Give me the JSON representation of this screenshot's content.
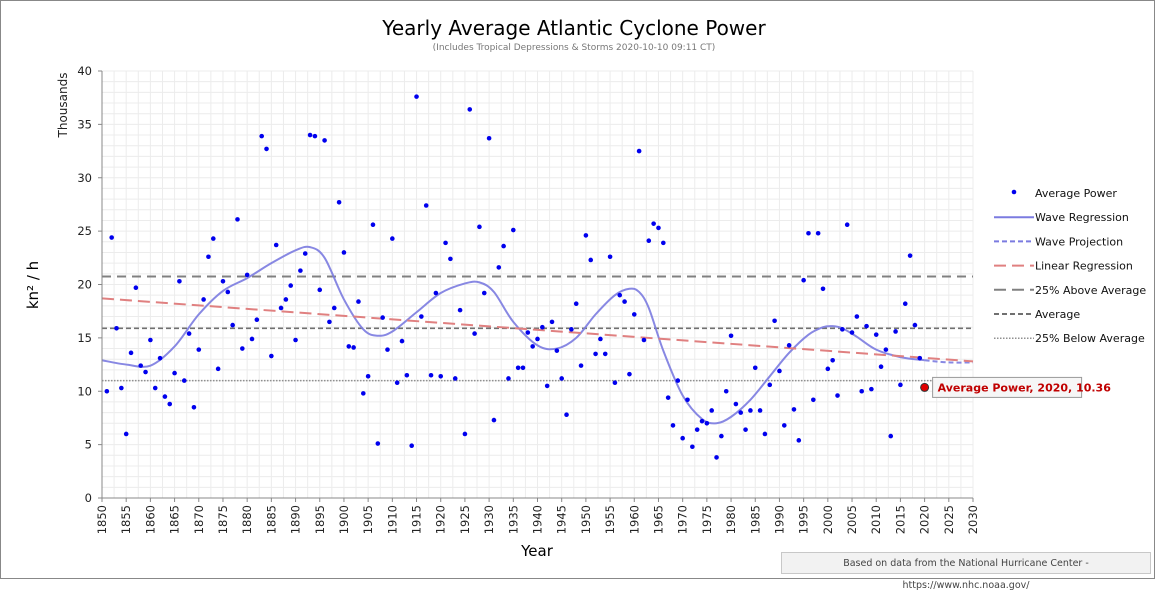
{
  "chart_data": {
    "type": "scatter",
    "title": "Yearly Average Atlantic Cyclone Power",
    "subtitle": "(Includes Tropical Depressions & Storms 2020-10-10 09:11 CT)",
    "xlabel": "Year",
    "ylabel": "kn² / h",
    "y_units_label": "Thousands",
    "xlim": [
      1850,
      2030
    ],
    "ylim": [
      0,
      40
    ],
    "x_ticks": [
      1850,
      1855,
      1860,
      1865,
      1870,
      1875,
      1880,
      1885,
      1890,
      1895,
      1900,
      1905,
      1910,
      1915,
      1920,
      1925,
      1930,
      1935,
      1940,
      1945,
      1950,
      1955,
      1960,
      1965,
      1970,
      1975,
      1980,
      1985,
      1990,
      1995,
      2000,
      2005,
      2010,
      2015,
      2020,
      2025,
      2030
    ],
    "y_ticks": [
      0,
      5,
      10,
      15,
      20,
      25,
      30,
      35,
      40
    ],
    "grid": true,
    "legend_position": "right",
    "legend": [
      {
        "name": "Average Power",
        "style": "dot",
        "color": "#0000ee"
      },
      {
        "name": "Wave Regression",
        "style": "solid",
        "color": "#7b7be0"
      },
      {
        "name": "Wave Projection",
        "style": "dash",
        "color": "#7b7be0"
      },
      {
        "name": "Linear Regression",
        "style": "longdash",
        "color": "#e08080"
      },
      {
        "name": "25% Above Average",
        "style": "longdash",
        "color": "#808080"
      },
      {
        "name": "Average",
        "style": "dash",
        "color": "#707070"
      },
      {
        "name": "25% Below Average",
        "style": "dot",
        "color": "#909090"
      }
    ],
    "series": [
      {
        "name": "Average Power",
        "x": [
          1851,
          1852,
          1853,
          1854,
          1855,
          1856,
          1857,
          1858,
          1859,
          1860,
          1861,
          1862,
          1863,
          1864,
          1865,
          1866,
          1867,
          1868,
          1869,
          1870,
          1871,
          1872,
          1873,
          1874,
          1875,
          1876,
          1877,
          1878,
          1879,
          1880,
          1881,
          1882,
          1883,
          1884,
          1885,
          1886,
          1887,
          1888,
          1889,
          1890,
          1891,
          1892,
          1893,
          1894,
          1895,
          1896,
          1897,
          1898,
          1899,
          1900,
          1901,
          1902,
          1903,
          1904,
          1905,
          1906,
          1907,
          1908,
          1909,
          1910,
          1911,
          1912,
          1913,
          1914,
          1915,
          1916,
          1917,
          1918,
          1919,
          1920,
          1921,
          1922,
          1923,
          1924,
          1925,
          1926,
          1927,
          1928,
          1929,
          1930,
          1931,
          1932,
          1933,
          1934,
          1935,
          1936,
          1937,
          1938,
          1939,
          1940,
          1941,
          1942,
          1943,
          1944,
          1945,
          1946,
          1947,
          1948,
          1949,
          1950,
          1951,
          1952,
          1953,
          1954,
          1955,
          1956,
          1957,
          1958,
          1959,
          1960,
          1961,
          1962,
          1963,
          1964,
          1965,
          1966,
          1967,
          1968,
          1969,
          1970,
          1971,
          1972,
          1973,
          1974,
          1975,
          1976,
          1977,
          1978,
          1979,
          1980,
          1981,
          1982,
          1983,
          1984,
          1985,
          1986,
          1987,
          1988,
          1989,
          1990,
          1991,
          1992,
          1993,
          1994,
          1995,
          1996,
          1997,
          1998,
          1999,
          2000,
          2001,
          2002,
          2003,
          2004,
          2005,
          2006,
          2007,
          2008,
          2009,
          2010,
          2011,
          2012,
          2013,
          2014,
          2015,
          2016,
          2017,
          2018,
          2019
        ],
        "y": [
          10.0,
          24.4,
          15.9,
          10.3,
          6.0,
          13.6,
          19.7,
          12.4,
          11.8,
          14.8,
          10.3,
          13.1,
          9.5,
          8.8,
          11.7,
          20.3,
          11.0,
          15.4,
          8.5,
          13.9,
          18.6,
          22.6,
          24.3,
          12.1,
          20.3,
          19.3,
          16.2,
          26.1,
          14.0,
          20.9,
          14.9,
          16.7,
          33.9,
          32.7,
          13.3,
          23.7,
          17.8,
          18.6,
          19.9,
          14.8,
          21.3,
          22.9,
          34.0,
          33.9,
          19.5,
          33.5,
          16.5,
          17.8,
          27.7,
          23.0,
          14.2,
          14.1,
          18.4,
          9.8,
          11.4,
          25.6,
          5.1,
          16.9,
          13.9,
          24.3,
          10.8,
          14.7,
          11.5,
          4.9,
          37.6,
          17.0,
          27.4,
          11.5,
          19.2,
          11.4,
          23.9,
          22.4,
          11.2,
          17.6,
          6.0,
          36.4,
          15.4,
          25.4,
          19.2,
          33.7,
          7.3,
          21.6,
          23.6,
          11.2,
          25.1,
          12.2,
          12.2,
          15.5,
          14.2,
          14.9,
          16.0,
          10.5,
          16.5,
          13.8,
          11.2,
          7.8,
          15.8,
          18.2,
          12.4,
          24.6,
          22.3,
          13.5,
          14.9,
          13.5,
          22.6,
          10.8,
          19.0,
          18.4,
          11.6,
          17.2,
          32.5,
          14.8,
          24.1,
          25.7,
          25.3,
          23.9,
          9.4,
          6.8,
          11.0,
          5.6,
          9.2,
          4.8,
          6.4,
          7.2,
          7.0,
          8.2,
          3.8,
          5.8,
          10.0,
          15.2,
          8.8,
          8.0,
          6.4,
          8.2,
          12.2,
          8.2,
          6.0,
          10.6,
          16.6,
          11.9,
          6.8,
          14.3,
          8.3,
          5.4,
          20.4,
          24.8,
          9.2,
          24.8,
          19.6,
          12.1,
          12.9,
          9.6,
          15.8,
          25.6,
          15.5,
          17.0,
          10.0,
          16.1,
          10.2,
          15.3,
          12.3,
          13.9,
          5.8,
          15.6,
          10.6,
          18.2,
          22.7,
          16.2,
          13.1
        ]
      },
      {
        "name": "Wave Regression",
        "x": [
          1850,
          1855,
          1860,
          1865,
          1870,
          1875,
          1880,
          1885,
          1890,
          1893,
          1896,
          1900,
          1904,
          1907,
          1910,
          1915,
          1920,
          1925,
          1928,
          1931,
          1935,
          1940,
          1944,
          1948,
          1952,
          1956,
          1959,
          1961,
          1963,
          1966,
          1970,
          1974,
          1977,
          1980,
          1984,
          1988,
          1992,
          1996,
          1999,
          2001,
          2003,
          2006,
          2010,
          2015,
          2020
        ],
        "y": [
          12.9,
          12.5,
          12.4,
          14.2,
          17.2,
          19.4,
          20.6,
          22.0,
          23.2,
          23.5,
          22.5,
          18.6,
          15.8,
          15.2,
          15.6,
          17.4,
          19.2,
          20.1,
          20.2,
          19.3,
          16.5,
          14.3,
          14.0,
          15.0,
          17.2,
          19.0,
          19.6,
          19.3,
          17.8,
          13.8,
          9.6,
          7.4,
          7.0,
          7.6,
          9.2,
          11.4,
          13.6,
          15.3,
          16.0,
          16.1,
          15.9,
          15.1,
          13.9,
          13.2,
          12.9
        ]
      },
      {
        "name": "Wave Projection",
        "x": [
          2020,
          2025,
          2030
        ],
        "y": [
          12.9,
          12.7,
          12.7
        ]
      },
      {
        "name": "Linear Regression",
        "x": [
          1850,
          2030
        ],
        "y": [
          18.7,
          12.8
        ]
      },
      {
        "name": "25% Above Average",
        "x": [
          1850,
          2030
        ],
        "y": [
          20.75,
          20.75
        ]
      },
      {
        "name": "Average",
        "x": [
          1850,
          2030
        ],
        "y": [
          15.9,
          15.9
        ]
      },
      {
        "name": "25% Below Average",
        "x": [
          1850,
          2030
        ],
        "y": [
          11.0,
          11.0
        ]
      }
    ],
    "highlight": {
      "series": "Average Power",
      "x": 2020,
      "y": 10.36,
      "label": "Average Power, 2020, 10.36",
      "color": "#e00000"
    }
  },
  "footer": {
    "credit": "Based on data from the National Hurricane Center - https://www.nhc.noaa.gov/"
  }
}
